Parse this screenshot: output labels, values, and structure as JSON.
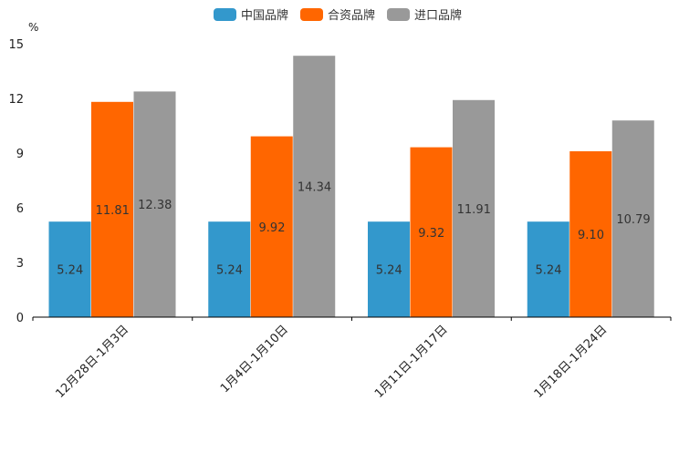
{
  "chart_data": {
    "type": "bar",
    "unit": "%",
    "categories": [
      "12月28日-1月3日",
      "1月4日-1月10日",
      "1月11日-1月17日",
      "1月18日-1月24日"
    ],
    "series": [
      {
        "name": "中国品牌",
        "color": "#3398cc",
        "values": [
          5.24,
          5.24,
          5.24,
          5.24
        ]
      },
      {
        "name": "合资品牌",
        "color": "#ff6600",
        "values": [
          11.81,
          9.92,
          9.32,
          9.1
        ]
      },
      {
        "name": "进口品牌",
        "color": "#999999",
        "values": [
          12.38,
          14.34,
          11.91,
          10.79
        ]
      }
    ],
    "ylim": [
      0,
      15
    ],
    "yticks": [
      "0",
      "3",
      "6",
      "9",
      "12",
      "15"
    ],
    "legend_position": "top-center"
  }
}
